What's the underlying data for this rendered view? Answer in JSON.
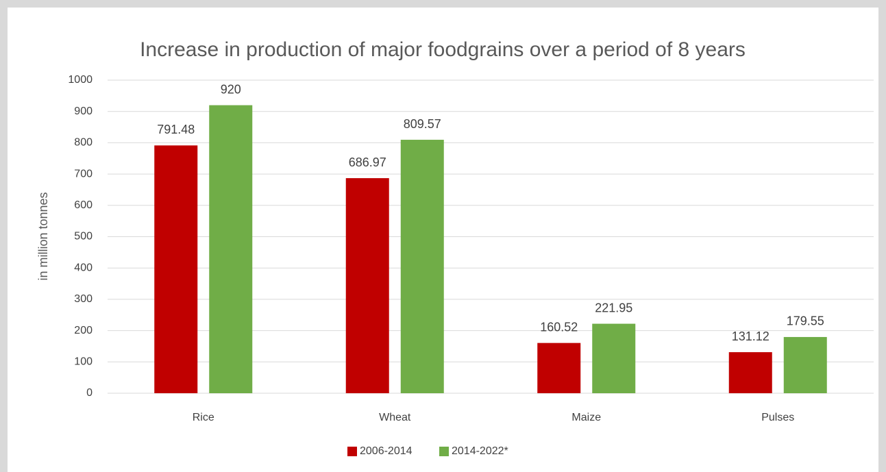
{
  "chart_data": {
    "type": "bar",
    "title": "Increase in production of major foodgrains over a period of 8 years",
    "y_label": "in million tonnes",
    "categories": [
      "Rice",
      "Wheat",
      "Maize",
      "Pulses"
    ],
    "series": [
      {
        "name": "2006-2014",
        "color": "#c00000",
        "values": [
          791.48,
          686.97,
          160.52,
          131.12
        ]
      },
      {
        "name": "2014-2022*",
        "color": "#70ad47",
        "values": [
          920,
          809.57,
          221.95,
          179.55
        ]
      }
    ],
    "ylim": [
      0,
      1000
    ],
    "yticks": [
      0,
      100,
      200,
      300,
      400,
      500,
      600,
      700,
      800,
      900,
      1000
    ],
    "grid": true,
    "legend": "bottom"
  }
}
